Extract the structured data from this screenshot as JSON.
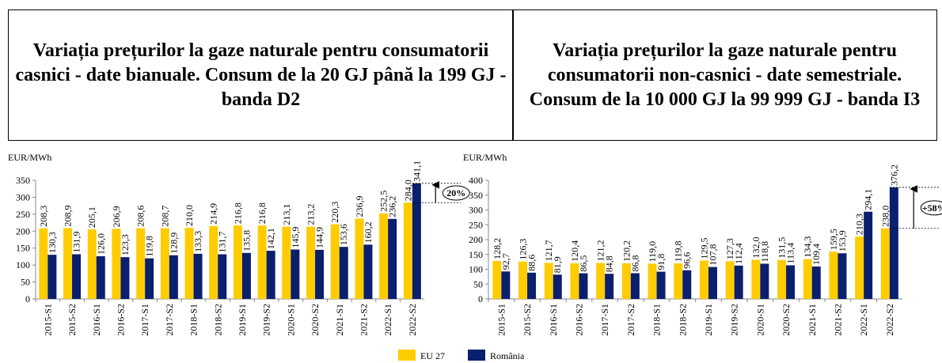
{
  "chart_data": [
    {
      "type": "bar",
      "title": "Variația prețurilor la gaze naturale pentru consumatorii casnici - date bianuale. Consum de la 20 GJ până la 199 GJ - banda D2",
      "y_label": "EUR/MWh",
      "categories": [
        "2015-S1",
        "2015-S2",
        "2016-S1",
        "2016-S2",
        "2017-S1",
        "2017-S2",
        "2018-S1",
        "2018-S2",
        "2019-S1",
        "2019-S2",
        "2020-S1",
        "2020-S2",
        "2021-S1",
        "2021-S2",
        "2022-S1",
        "2022-S2"
      ],
      "series": [
        {
          "name": "EU 27",
          "color": "#ffcc00",
          "values": [
            208.3,
            208.9,
            205.1,
            206.9,
            208.6,
            208.7,
            210.0,
            214.9,
            216.8,
            216.8,
            213.1,
            213.2,
            220.3,
            236.9,
            252.5,
            284.0
          ],
          "value_labels": [
            "208,3",
            "208,9",
            "205,1",
            "206,9",
            "208,6",
            "208,7",
            "210,0",
            "214,9",
            "216,8",
            "216,8",
            "213,1",
            "213,2",
            "220,3",
            "236,9",
            "252,5",
            "284,0"
          ]
        },
        {
          "name": "România",
          "color": "#0a1f6e",
          "values": [
            130.3,
            131.9,
            126.0,
            123.3,
            119.8,
            128.9,
            133.3,
            131.7,
            135.8,
            142.1,
            145.9,
            144.9,
            153.6,
            160.2,
            236.2,
            341.1
          ],
          "value_labels": [
            "130,3",
            "131,9",
            "126,0",
            "123,3",
            "119,8",
            "128,9",
            "133,3",
            "131,7",
            "135,8",
            "142,1",
            "145,9",
            "144,9",
            "153,6",
            "160,2",
            "236,2",
            "341,1"
          ]
        }
      ],
      "ylim": [
        0,
        350
      ],
      "yticks": [
        0,
        50,
        100,
        150,
        200,
        250,
        300,
        350
      ],
      "annotation": "20%"
    },
    {
      "type": "bar",
      "title": "Variația prețurilor la gaze naturale pentru consumatorii non-casnici - date semestriale. Consum de la 10 000 GJ la 99 999 GJ - banda I3",
      "y_label": "EUR/MWh",
      "categories": [
        "2015-S1",
        "2015-S2",
        "2016-S1",
        "2016-S2",
        "2017-S1",
        "2017-S2",
        "2018-S1",
        "2018-S2",
        "2019-S1",
        "2019-S2",
        "2020-S1",
        "2020-S2",
        "2021-S1",
        "2021-S2",
        "2022-S1",
        "2022-S2"
      ],
      "series": [
        {
          "color": "#ffcc00",
          "values": [
            128.2,
            126.3,
            121.7,
            120.4,
            121.2,
            120.2,
            119.0,
            119.8,
            129.5,
            127.3,
            132.0,
            131.5,
            134.3,
            159.5,
            210.3,
            238.0
          ],
          "value_labels": [
            "128,2",
            "126,3",
            "121,7",
            "120,4",
            "121,2",
            "120,2",
            "119,0",
            "119,8",
            "129,5",
            "127,3",
            "132,0",
            "131,5",
            "134,3",
            "159,5",
            "210,3",
            "238,0"
          ]
        },
        {
          "color": "#0a1f6e",
          "values": [
            92.7,
            88.6,
            81.9,
            86.5,
            84.8,
            86.8,
            91.8,
            96.6,
            107.8,
            112.4,
            118.8,
            113.4,
            109.4,
            153.9,
            294.1,
            376.2
          ],
          "value_labels": [
            "92,7",
            "88,6",
            "81,9",
            "86,5",
            "84,8",
            "86,8",
            "91,8",
            "96,6",
            "107,8",
            "112,4",
            "118,8",
            "113,4",
            "109,4",
            "153,9",
            "294,1",
            "376,2"
          ]
        }
      ],
      "ylim": [
        0,
        400
      ],
      "yticks": [
        0,
        50,
        100,
        150,
        200,
        250,
        300,
        350,
        400
      ],
      "annotation": "+58%"
    }
  ]
}
